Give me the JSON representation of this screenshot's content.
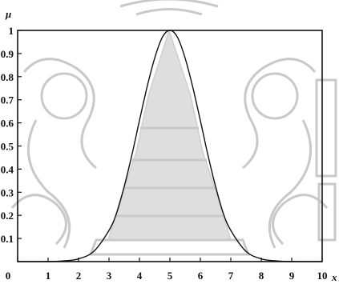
{
  "chart_data": {
    "type": "line",
    "title": "",
    "ylabel": "μ",
    "xlabel": "x",
    "xlim": [
      0,
      10
    ],
    "ylim": [
      0,
      1
    ],
    "x_ticks": [
      "0",
      "1",
      "2",
      "3",
      "4",
      "5",
      "6",
      "7",
      "8",
      "9",
      "10"
    ],
    "y_ticks": [
      "0.1",
      "0.2",
      "0.3",
      "0.4",
      "0.5",
      "0.6",
      "0.7",
      "0.8",
      "0.9",
      "1"
    ],
    "grid": false,
    "series": [
      {
        "x": [
          0,
          1,
          1.5,
          2,
          2.5,
          3,
          3.25,
          3.5,
          3.75,
          4,
          4.25,
          4.5,
          4.75,
          5,
          5.25,
          5.5,
          5.75,
          6,
          6.25,
          6.5,
          6.75,
          7,
          7.5,
          8,
          8.5,
          9,
          10
        ],
        "y": [
          0,
          0,
          0.003,
          0.012,
          0.044,
          0.135,
          0.21,
          0.325,
          0.46,
          0.61,
          0.755,
          0.88,
          0.97,
          1.0,
          0.97,
          0.88,
          0.755,
          0.61,
          0.46,
          0.325,
          0.21,
          0.135,
          0.044,
          0.012,
          0.003,
          0,
          0
        ],
        "color": "#111111"
      }
    ]
  },
  "colors": {
    "axis": "#111111",
    "curve": "#111111",
    "watermark": "#c9c9c9"
  }
}
